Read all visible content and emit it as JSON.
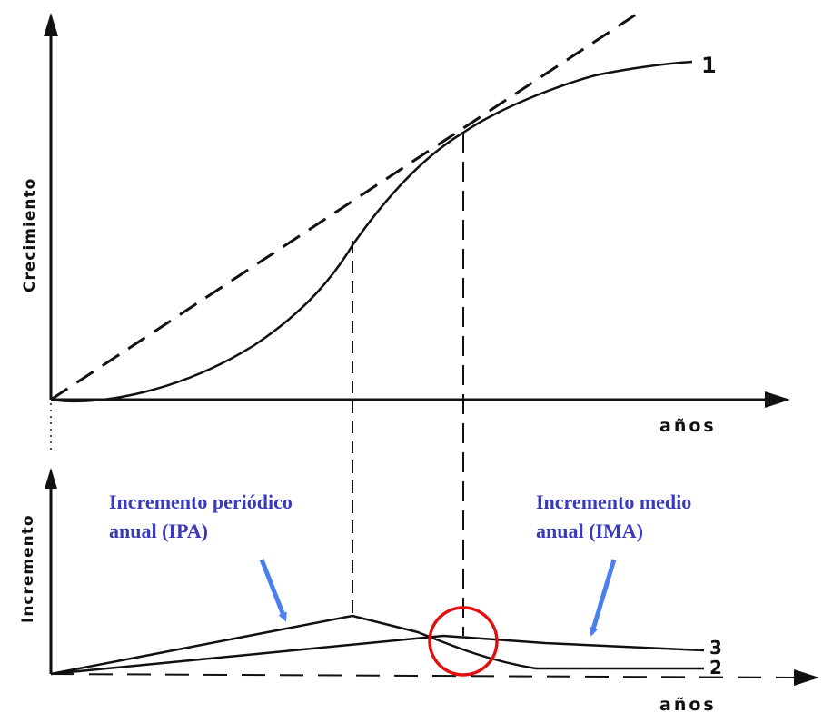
{
  "top_chart": {
    "ylabel": "Crecimiento",
    "xlabel": "años",
    "curve_label": "1"
  },
  "bottom_chart": {
    "ylabel": "Incremento",
    "xlabel": "años",
    "curve_labels": [
      "3",
      "2"
    ]
  },
  "annotations": {
    "ipa_line1": "Incremento periódico",
    "ipa_line2": "anual (IPA)",
    "ima_line1": "Incremento medio",
    "ima_line2": "anual (IMA)"
  },
  "colors": {
    "annotation_text": "#3a3ab8",
    "arrow": "#4a7ff0",
    "highlight_circle": "#e01010",
    "ink": "#111111"
  }
}
